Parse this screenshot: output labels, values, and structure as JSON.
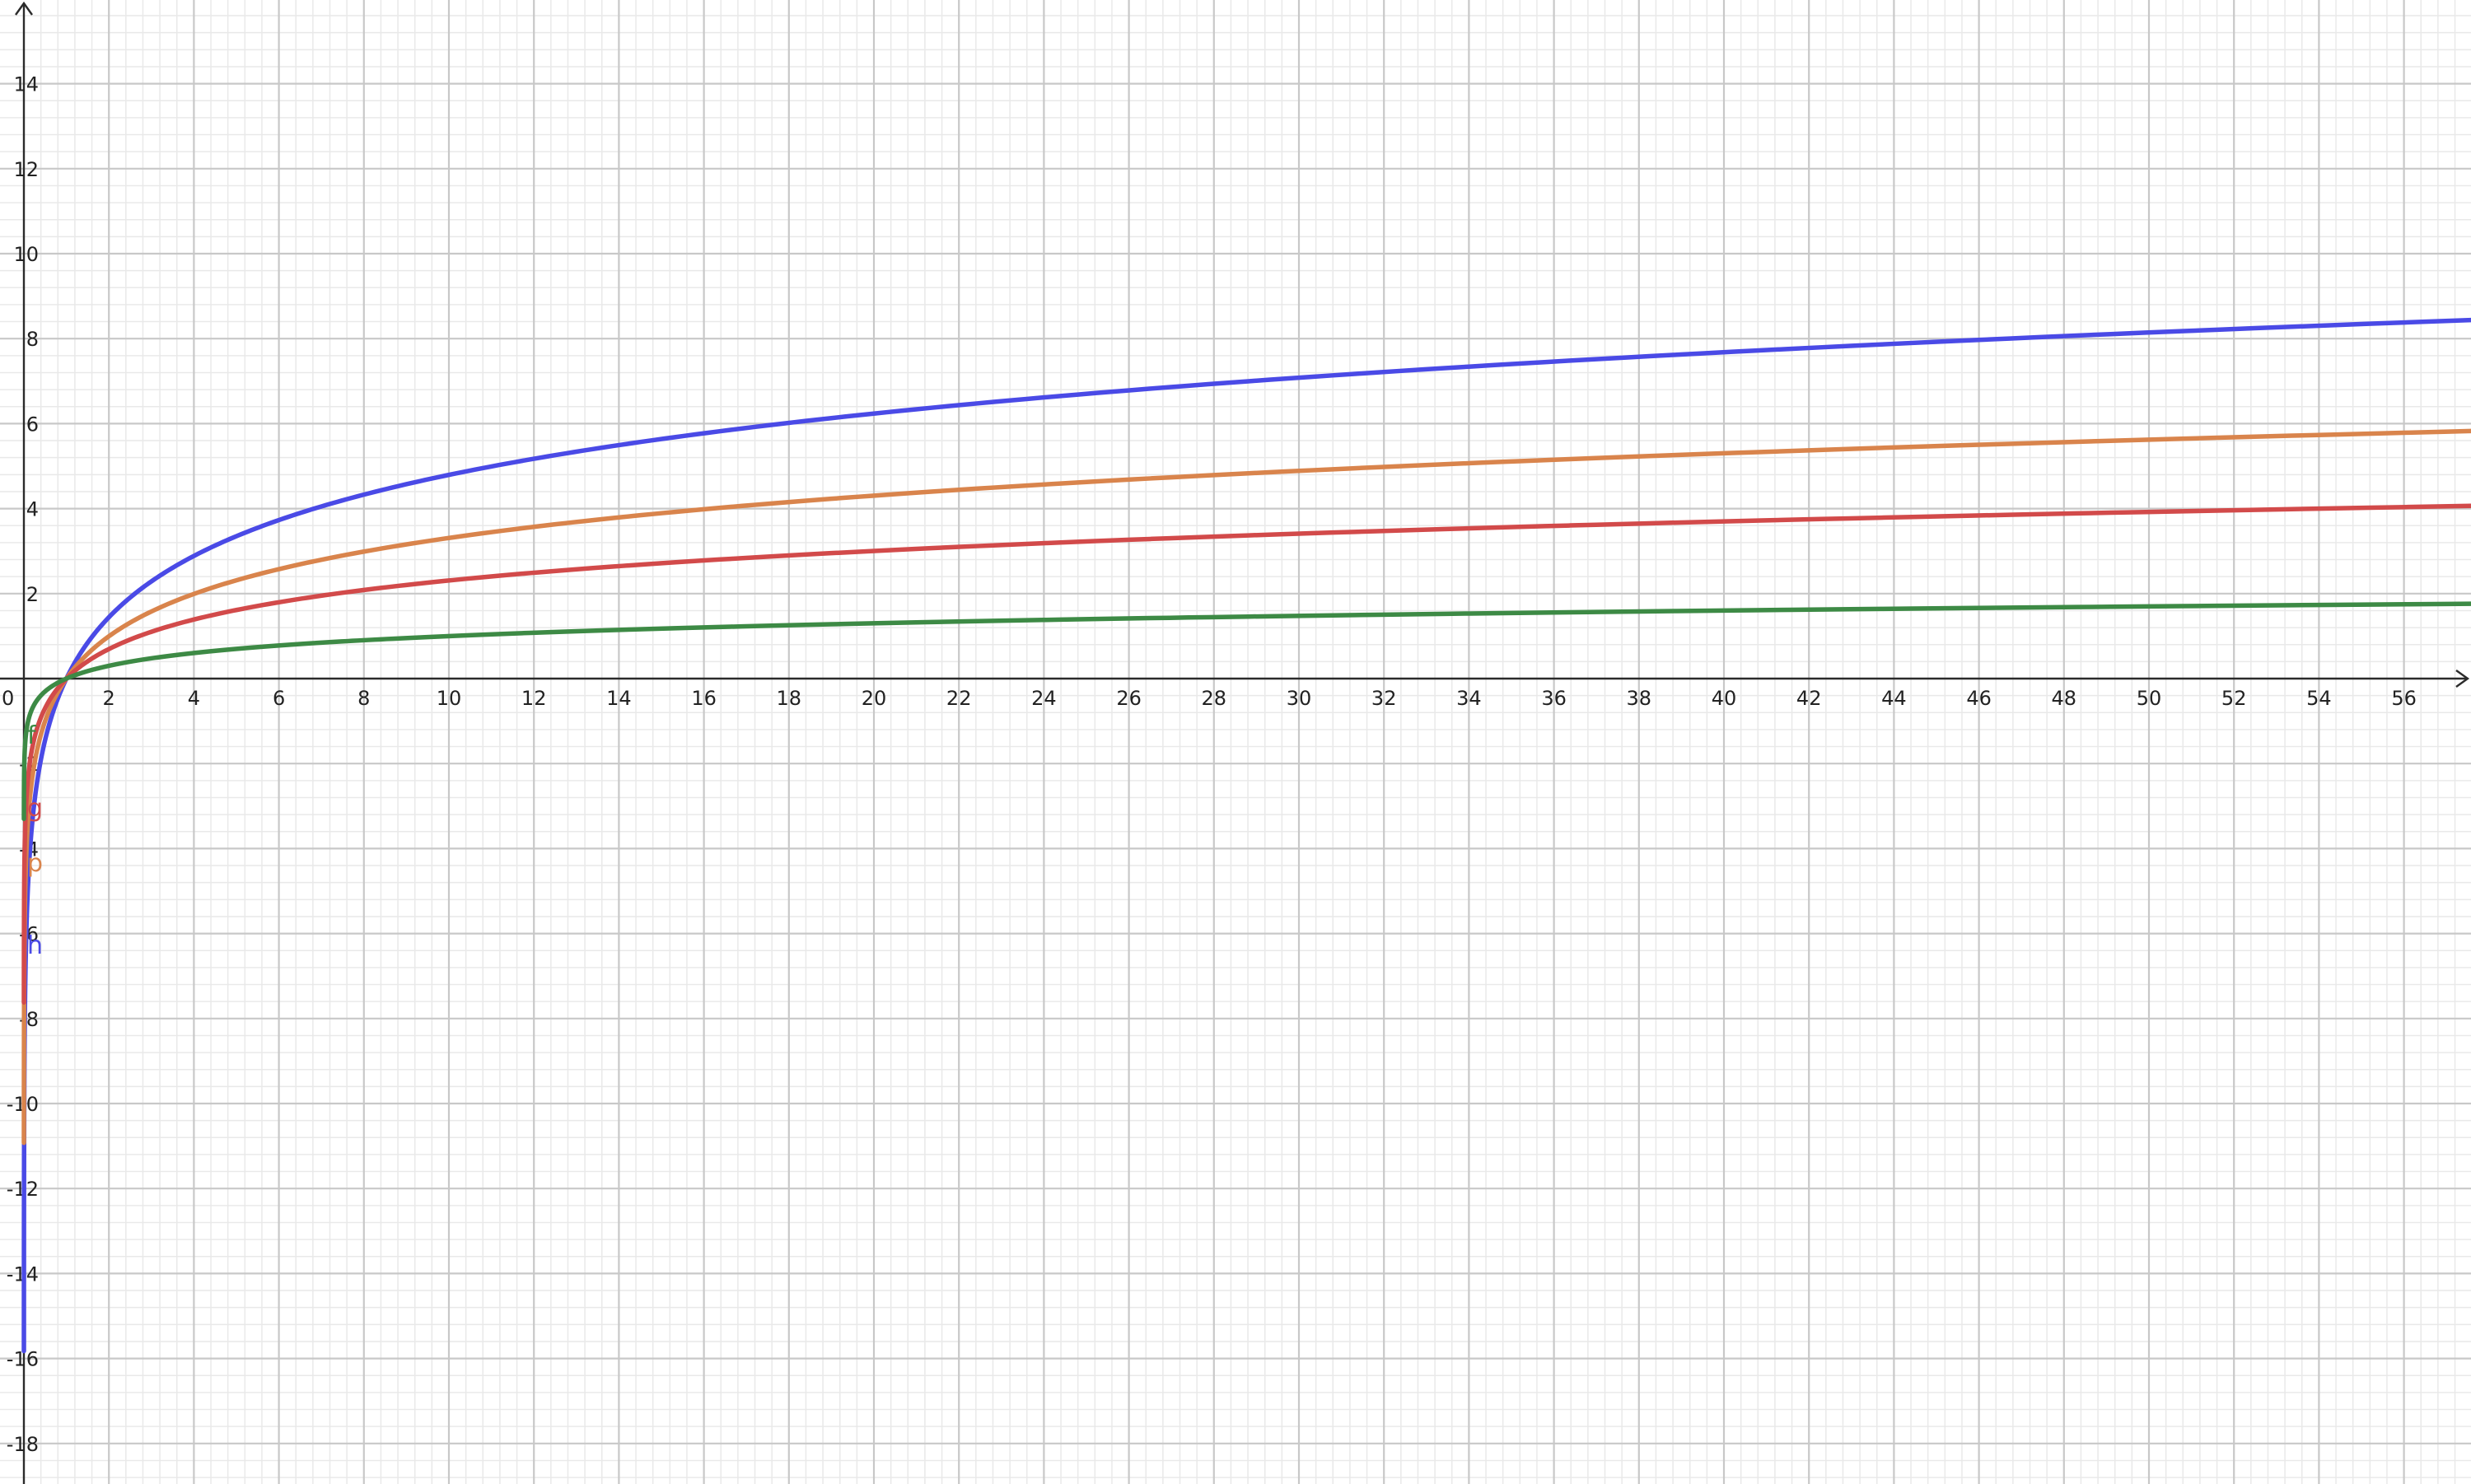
{
  "chart_data": {
    "type": "line",
    "title": "",
    "xlabel": "",
    "ylabel": "",
    "xlim": [
      0,
      58
    ],
    "ylim": [
      -19.2,
      15.8
    ],
    "grid": true,
    "origin_label": "0",
    "x_ticks": [
      2,
      4,
      6,
      8,
      10,
      12,
      14,
      16,
      18,
      20,
      22,
      24,
      26,
      28,
      30,
      32,
      34,
      36,
      38,
      40,
      42,
      44,
      46,
      48,
      50,
      52,
      54,
      56
    ],
    "y_ticks": [
      14,
      12,
      10,
      8,
      6,
      4,
      2,
      -2,
      -4,
      -6,
      -8,
      -10,
      -12,
      -14,
      -16,
      -18
    ],
    "series": [
      {
        "name": "h",
        "color": "#4a4ae6",
        "x": [
          0.05,
          0.1,
          0.2,
          0.5,
          1,
          2,
          4,
          6,
          8,
          10,
          14,
          20,
          28,
          36,
          46,
          58
        ],
        "y": [
          -6.2,
          -5.2,
          -3.25,
          -1.4,
          0,
          1.4,
          2.85,
          3.7,
          4.25,
          4.8,
          5.5,
          6.2,
          6.9,
          7.45,
          7.95,
          8.45
        ]
      },
      {
        "name": "p",
        "color": "#d9844c",
        "x": [
          0.05,
          0.1,
          0.2,
          0.5,
          1,
          2,
          4,
          6,
          8,
          10,
          14,
          20,
          28,
          36,
          46,
          58
        ],
        "y": [
          -4.3,
          -3.3,
          -2.3,
          -1.0,
          0,
          1.0,
          2.0,
          2.55,
          3.0,
          3.3,
          3.8,
          4.3,
          4.8,
          5.15,
          5.5,
          5.85
        ]
      },
      {
        "name": "g",
        "color": "#d24a4a",
        "x": [
          0.05,
          0.1,
          0.2,
          0.5,
          1,
          2,
          4,
          6,
          8,
          10,
          14,
          20,
          28,
          36,
          46,
          58
        ],
        "y": [
          -3.0,
          -2.3,
          -1.6,
          -0.7,
          0,
          0.7,
          1.4,
          1.8,
          2.1,
          2.3,
          2.65,
          3.0,
          3.35,
          3.6,
          3.85,
          4.05
        ]
      },
      {
        "name": "f",
        "color": "#3d8a45",
        "x": [
          0.05,
          0.1,
          0.2,
          0.5,
          1,
          2,
          4,
          6,
          8,
          10,
          14,
          20,
          28,
          36,
          46,
          58
        ],
        "y": [
          -1.3,
          -1.0,
          -0.7,
          -0.3,
          0,
          0.3,
          0.6,
          0.78,
          0.9,
          1.0,
          1.15,
          1.3,
          1.45,
          1.56,
          1.66,
          1.76
        ]
      }
    ]
  }
}
